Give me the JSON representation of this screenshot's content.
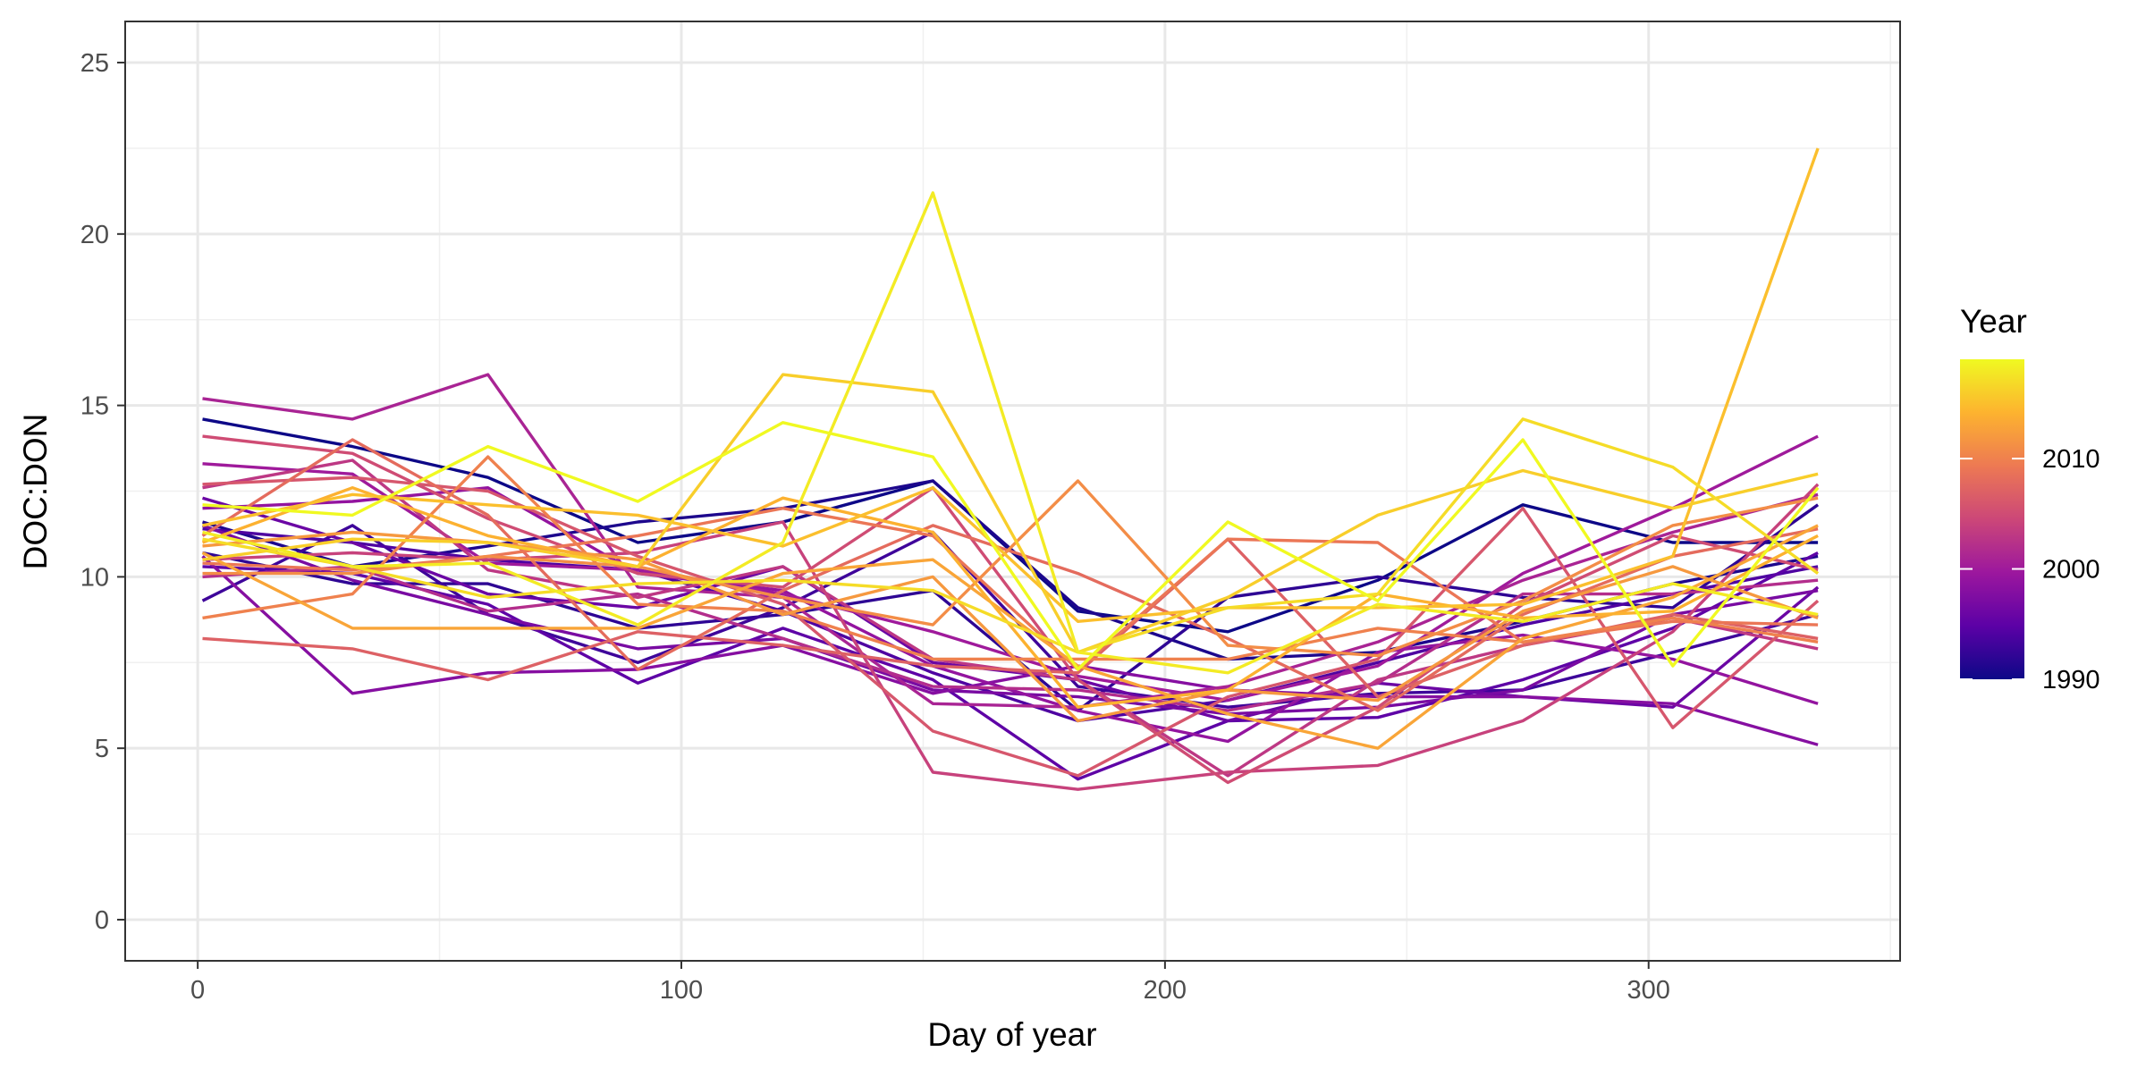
{
  "chart_data": {
    "type": "line",
    "title": "",
    "xlabel": "Day of year",
    "ylabel": "DOC:DON",
    "xlim": [
      -15,
      352
    ],
    "ylim": [
      -1.2,
      26.2
    ],
    "x_ticks": [
      0,
      100,
      200,
      300
    ],
    "x_tick_labels": [
      "0",
      "100",
      "200",
      "300"
    ],
    "y_ticks": [
      0,
      5,
      10,
      15,
      20,
      25
    ],
    "y_tick_labels": [
      "0",
      "5",
      "10",
      "15",
      "20",
      "25"
    ],
    "grid": true,
    "legend": {
      "title": "Year",
      "type": "colorbar",
      "placement": "right",
      "range": [
        1990,
        2019
      ],
      "ticks": [
        1990,
        2000,
        2010
      ],
      "tick_labels": [
        "1990",
        "2000",
        "2010"
      ]
    },
    "colormap": [
      "#0d0887",
      "#5c01a6",
      "#9c179e",
      "#cc4778",
      "#ed7953",
      "#fdb32f",
      "#f0f921"
    ],
    "x": [
      1,
      32,
      60,
      91,
      121,
      152,
      182,
      213,
      244,
      274,
      305,
      335
    ],
    "series": [
      {
        "year": 1990,
        "values": [
          14.6,
          13.8,
          12.9,
          11.0,
          11.6,
          12.8,
          9.0,
          8.4,
          9.9,
          12.1,
          11.0,
          11.0
        ]
      },
      {
        "year": 1991,
        "values": [
          11.6,
          10.3,
          10.9,
          11.6,
          12.0,
          12.8,
          9.1,
          7.6,
          7.8,
          8.7,
          9.8,
          10.6
        ]
      },
      {
        "year": 1992,
        "values": [
          10.7,
          9.8,
          9.8,
          8.5,
          8.9,
          9.6,
          6.1,
          9.4,
          10.0,
          9.4,
          9.1,
          12.1
        ]
      },
      {
        "year": 1993,
        "values": [
          9.3,
          11.5,
          8.9,
          7.5,
          9.1,
          11.3,
          6.8,
          6.2,
          6.6,
          6.7,
          7.8,
          8.9
        ]
      },
      {
        "year": 1994,
        "values": [
          11.4,
          11.0,
          10.5,
          10.2,
          9.0,
          7.2,
          5.8,
          6.4,
          7.5,
          8.6,
          9.5,
          10.3
        ]
      },
      {
        "year": 1995,
        "values": [
          10.3,
          10.1,
          9.2,
          6.9,
          8.5,
          7.0,
          4.1,
          5.8,
          5.9,
          7.0,
          8.5,
          10.7
        ]
      },
      {
        "year": 1996,
        "values": [
          12.3,
          11.0,
          9.5,
          9.1,
          10.3,
          7.5,
          7.0,
          5.8,
          6.9,
          6.5,
          6.2,
          9.7
        ]
      },
      {
        "year": 1997,
        "values": [
          11.5,
          9.9,
          8.9,
          7.9,
          8.2,
          6.7,
          6.5,
          6.0,
          6.2,
          6.7,
          8.9,
          9.6
        ]
      },
      {
        "year": 1998,
        "values": [
          10.6,
          6.6,
          7.2,
          7.3,
          8.0,
          6.6,
          7.4,
          6.7,
          6.5,
          6.5,
          6.3,
          5.1
        ]
      },
      {
        "year": 1999,
        "values": [
          12.0,
          12.2,
          12.6,
          10.1,
          9.6,
          7.4,
          6.1,
          5.2,
          7.8,
          8.3,
          7.6,
          6.3
        ]
      },
      {
        "year": 2000,
        "values": [
          13.3,
          13.0,
          10.4,
          10.2,
          9.5,
          8.4,
          7.1,
          6.4,
          7.4,
          10.1,
          12.0,
          14.1
        ]
      },
      {
        "year": 2001,
        "values": [
          15.2,
          14.6,
          15.9,
          9.7,
          9.4,
          6.3,
          6.2,
          6.8,
          8.1,
          9.9,
          11.3,
          12.4
        ]
      },
      {
        "year": 2002,
        "values": [
          10.0,
          10.3,
          9.0,
          9.5,
          8.2,
          6.8,
          6.7,
          6.1,
          6.9,
          9.5,
          9.5,
          9.9
        ]
      },
      {
        "year": 2003,
        "values": [
          12.6,
          13.4,
          10.2,
          9.4,
          10.3,
          7.6,
          7.0,
          4.2,
          7.0,
          8.0,
          8.8,
          7.9
        ]
      },
      {
        "year": 2004,
        "values": [
          10.5,
          10.7,
          10.5,
          10.7,
          11.6,
          4.3,
          3.8,
          4.3,
          4.5,
          5.8,
          8.4,
          12.7
        ]
      },
      {
        "year": 2005,
        "values": [
          14.1,
          13.6,
          11.7,
          10.1,
          9.7,
          12.6,
          7.0,
          4.0,
          6.2,
          9.2,
          11.2,
          10.2
        ]
      },
      {
        "year": 2006,
        "values": [
          12.7,
          12.9,
          12.5,
          10.6,
          9.2,
          5.5,
          4.2,
          6.5,
          7.6,
          12.0,
          5.6,
          9.3
        ]
      },
      {
        "year": 2007,
        "values": [
          8.2,
          7.9,
          7.0,
          8.4,
          8.0,
          7.4,
          7.2,
          11.1,
          6.5,
          8.0,
          8.9,
          8.2
        ]
      },
      {
        "year": 2008,
        "values": [
          11.2,
          14.0,
          11.8,
          7.3,
          9.6,
          11.5,
          10.1,
          8.2,
          6.1,
          8.9,
          10.6,
          11.4
        ]
      },
      {
        "year": 2009,
        "values": [
          10.4,
          10.2,
          10.6,
          11.2,
          12.0,
          11.2,
          7.3,
          11.1,
          11.0,
          8.1,
          8.7,
          8.6
        ]
      },
      {
        "year": 2010,
        "values": [
          8.8,
          9.5,
          13.5,
          9.2,
          9.0,
          7.6,
          7.6,
          7.6,
          8.5,
          8.1,
          8.8,
          8.1
        ]
      },
      {
        "year": 2011,
        "values": [
          10.1,
          10.1,
          10.6,
          10.3,
          9.4,
          8.6,
          12.8,
          8.0,
          7.7,
          9.3,
          11.5,
          12.3
        ]
      },
      {
        "year": 2012,
        "values": [
          10.9,
          11.3,
          11.0,
          10.5,
          8.9,
          10.0,
          5.8,
          6.7,
          6.4,
          9.0,
          10.3,
          8.8
        ]
      },
      {
        "year": 2013,
        "values": [
          10.7,
          8.5,
          8.5,
          8.5,
          10.1,
          10.5,
          7.4,
          6.0,
          5.0,
          8.2,
          9.4,
          11.5
        ]
      },
      {
        "year": 2014,
        "values": [
          11.0,
          12.6,
          11.2,
          10.3,
          12.3,
          11.3,
          6.2,
          6.7,
          9.5,
          8.8,
          9.0,
          11.2
        ]
      },
      {
        "year": 2015,
        "values": [
          11.5,
          12.4,
          12.1,
          11.8,
          10.9,
          12.6,
          8.7,
          9.1,
          9.1,
          9.2,
          10.6,
          22.5
        ]
      },
      {
        "year": 2016,
        "values": [
          10.5,
          11.1,
          11.0,
          10.3,
          15.9,
          15.4,
          7.8,
          9.4,
          11.8,
          13.1,
          12.0,
          13.0
        ]
      },
      {
        "year": 2017,
        "values": [
          11.1,
          10.3,
          9.4,
          9.8,
          9.9,
          9.6,
          7.8,
          9.1,
          9.5,
          14.6,
          13.2,
          10.1
        ]
      },
      {
        "year": 2018,
        "values": [
          11.3,
          10.3,
          10.4,
          8.6,
          11.0,
          21.2,
          7.8,
          7.2,
          9.2,
          8.7,
          9.8,
          8.9
        ]
      },
      {
        "year": 2019,
        "values": [
          12.1,
          11.8,
          13.8,
          12.2,
          14.5,
          13.5,
          7.3,
          11.6,
          9.3,
          14.0,
          7.4,
          12.6
        ]
      }
    ]
  }
}
